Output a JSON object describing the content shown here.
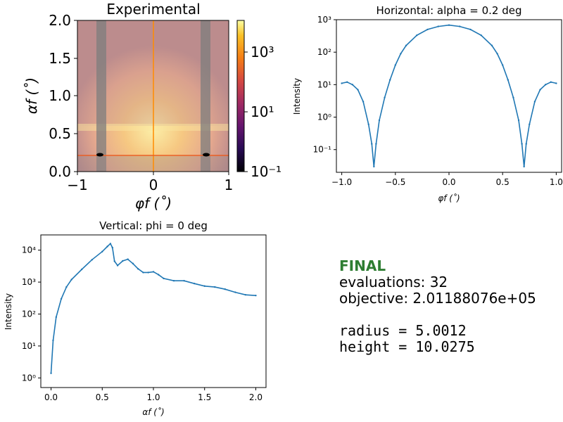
{
  "heatmap": {
    "title": "Experimental",
    "xlabel": "φf (˚)",
    "ylabel": "αf (˚)",
    "xticks": [
      "−1",
      "0",
      "1"
    ],
    "yticks": [
      "0.0",
      "0.5",
      "1.0",
      "1.5",
      "2.0"
    ],
    "colorbar_ticks": [
      "10⁻¹",
      "10¹",
      "10³"
    ]
  },
  "horizontal": {
    "title": "Horizontal: alpha = 0.2 deg",
    "xlabel": "φf (˚)",
    "ylabel": "Intensity",
    "xticks": [
      "−1.0",
      "−0.5",
      "0.0",
      "0.5",
      "1.0"
    ],
    "yticks": [
      "10⁻¹",
      "10⁰",
      "10¹",
      "10²",
      "10³"
    ]
  },
  "vertical": {
    "title": "Vertical: phi = 0 deg",
    "xlabel": "αf (˚)",
    "ylabel": "Intensity",
    "xticks": [
      "0.0",
      "0.5",
      "1.0",
      "1.5",
      "2.0"
    ],
    "yticks": [
      "10⁰",
      "10¹",
      "10²",
      "10³",
      "10⁴"
    ]
  },
  "fit_status": {
    "status": "FINAL",
    "evaluations": "evaluations: 32",
    "objective": "objective: 2.01188076e+05",
    "radius": "radius = 5.0012",
    "height": "height = 10.0275",
    "status_color": "#2e7d32"
  },
  "colors": {
    "series": "#1f77b4",
    "crosshair": "#ff8c00",
    "cut_line": "#c2185b"
  },
  "chart_data": [
    {
      "type": "heatmap",
      "title": "Experimental",
      "xlim": [
        -1,
        1
      ],
      "ylim": [
        0,
        2
      ],
      "colorbar": {
        "scale": "log",
        "range": [
          0.1,
          10000
        ],
        "colormap": "inferno"
      },
      "crosshair": {
        "x": 0,
        "y": 0.2
      }
    },
    {
      "type": "line",
      "title": "Horizontal: alpha = 0.2 deg",
      "xlabel": "φf (˚)",
      "ylabel": "Intensity",
      "xlim": [
        -1.05,
        1.05
      ],
      "ylim": [
        0.02,
        1000
      ],
      "yscale": "log",
      "series": [
        {
          "style": "line+points",
          "x": [
            -1.0,
            -0.95,
            -0.9,
            -0.85,
            -0.8,
            -0.75,
            -0.72,
            -0.7,
            -0.68,
            -0.65,
            -0.6,
            -0.55,
            -0.5,
            -0.45,
            -0.4,
            -0.3,
            -0.2,
            -0.1,
            0.0,
            0.1,
            0.2,
            0.3,
            0.4,
            0.45,
            0.5,
            0.55,
            0.6,
            0.65,
            0.68,
            0.7,
            0.72,
            0.75,
            0.8,
            0.85,
            0.9,
            0.95,
            1.0
          ],
          "y": [
            11,
            12,
            10,
            7,
            3,
            0.6,
            0.15,
            0.03,
            0.15,
            0.8,
            4,
            14,
            40,
            90,
            160,
            330,
            500,
            620,
            680,
            620,
            500,
            330,
            160,
            90,
            40,
            14,
            4,
            0.8,
            0.15,
            0.03,
            0.15,
            0.6,
            3,
            7,
            10,
            12,
            11
          ]
        }
      ]
    },
    {
      "type": "line",
      "title": "Vertical: phi = 0 deg",
      "xlabel": "αf (˚)",
      "ylabel": "Intensity",
      "xlim": [
        -0.1,
        2.1
      ],
      "ylim": [
        0.5,
        30000
      ],
      "yscale": "log",
      "series": [
        {
          "style": "line+points",
          "x": [
            0.0,
            0.02,
            0.05,
            0.1,
            0.15,
            0.2,
            0.3,
            0.4,
            0.5,
            0.55,
            0.58,
            0.6,
            0.62,
            0.65,
            0.7,
            0.75,
            0.8,
            0.85,
            0.9,
            0.95,
            1.0,
            1.05,
            1.1,
            1.2,
            1.3,
            1.4,
            1.5,
            1.6,
            1.7,
            1.8,
            1.9,
            2.0
          ],
          "y": [
            1.4,
            15,
            80,
            300,
            700,
            1200,
            2500,
            5000,
            9000,
            13000,
            16000,
            12000,
            4500,
            3300,
            4600,
            5200,
            3800,
            2600,
            2000,
            2000,
            2100,
            1700,
            1300,
            1100,
            1100,
            900,
            750,
            700,
            600,
            480,
            400,
            380
          ]
        }
      ]
    }
  ]
}
